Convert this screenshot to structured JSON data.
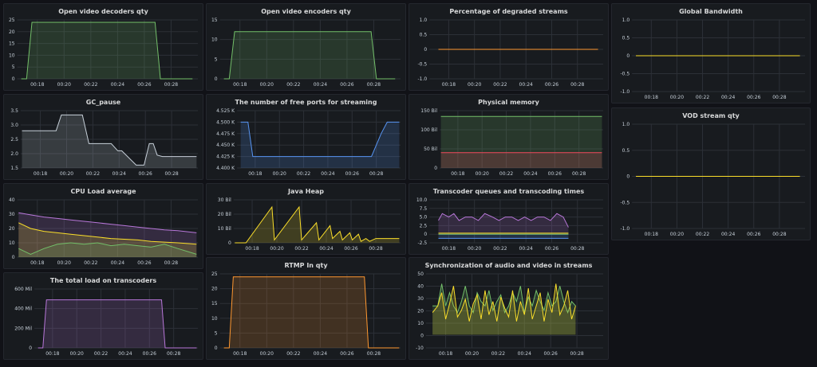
{
  "colors": {
    "green": "#73bf69",
    "yellow": "#fade2a",
    "orange": "#ff9830",
    "blue": "#5794f2",
    "purple": "#b877d9",
    "red": "#f2495c",
    "grid": "#2c3037",
    "tick": "#c7d0d9"
  },
  "panels": [
    {
      "id": "video-decoders",
      "title": "Open video decoders qty",
      "chart_data": {
        "type": "area",
        "x_ticks": [
          "00:18",
          "00:20",
          "00:22",
          "00:24",
          "00:26",
          "00:28"
        ],
        "y_ticks": [
          "0",
          "5",
          "10",
          "15",
          "20",
          "25"
        ],
        "ylim": [
          0,
          25
        ],
        "x": [
          16.8,
          17.2,
          17.6,
          26.8,
          27.2,
          29.6
        ],
        "series": [
          {
            "color": "green",
            "values": [
              0,
              0,
              24,
              24,
              0,
              0
            ]
          }
        ]
      }
    },
    {
      "id": "video-encoders",
      "title": "Open video encoders qty",
      "chart_data": {
        "type": "area",
        "x_ticks": [
          "00:18",
          "00:20",
          "00:22",
          "00:24",
          "00:26",
          "00:28"
        ],
        "y_ticks": [
          "0",
          "5",
          "10",
          "15"
        ],
        "ylim": [
          0,
          15
        ],
        "x": [
          16.8,
          17.2,
          17.6,
          27.8,
          28.2,
          29.6
        ],
        "series": [
          {
            "color": "green",
            "values": [
              0,
              0,
              12,
              12,
              0,
              0
            ]
          }
        ]
      }
    },
    {
      "id": "degraded-streams",
      "title": "Percentage of degraded streams",
      "chart_data": {
        "type": "line",
        "x_ticks": [
          "00:18",
          "00:20",
          "00:22",
          "00:24",
          "00:26",
          "00:28"
        ],
        "y_ticks": [
          "-1.0",
          "-0.5",
          "0",
          "0.5",
          "1.0"
        ],
        "ylim": [
          -1,
          1
        ],
        "x": [
          17.2,
          29.6
        ],
        "series": [
          {
            "color": "orange",
            "values": [
              0,
              0
            ]
          }
        ]
      }
    },
    {
      "id": "global-bandwidth",
      "title": "Global Bandwidth",
      "chart_data": {
        "type": "line",
        "x_ticks": [
          "00:18",
          "00:20",
          "00:22",
          "00:24",
          "00:26",
          "00:28"
        ],
        "y_ticks": [
          "-1.0",
          "-0.5",
          "0",
          "0.5",
          "1.0"
        ],
        "ylim": [
          -1,
          1
        ],
        "x": [
          16.8,
          29.6
        ],
        "series": [
          {
            "color": "yellow",
            "values": [
              0,
              0
            ]
          }
        ]
      }
    },
    {
      "id": "gc-pause",
      "title": "GC_pause",
      "chart_data": {
        "type": "area",
        "x_ticks": [
          "00:18",
          "00:20",
          "00:22",
          "00:24",
          "00:26",
          "00:28"
        ],
        "y_ticks": [
          "1.5",
          "2.0",
          "2.5",
          "3.0",
          "3.5"
        ],
        "ylim": [
          1.5,
          3.5
        ],
        "x": [
          16.6,
          19.2,
          19.6,
          21.2,
          21.7,
          23.4,
          23.9,
          24.2,
          25.3,
          25.9,
          26.3,
          26.6,
          26.9,
          27.3,
          28.0,
          29.9
        ],
        "series": [
          {
            "color": "tick",
            "values": [
              2.8,
              2.8,
              3.35,
              3.35,
              2.35,
              2.35,
              2.1,
              2.1,
              1.6,
              1.6,
              2.35,
              2.35,
              1.95,
              1.9,
              1.9,
              1.9
            ]
          }
        ]
      }
    },
    {
      "id": "free-ports",
      "title": "The number of free ports for streaming",
      "chart_data": {
        "type": "area",
        "x_ticks": [
          "00:18",
          "00:20",
          "00:22",
          "00:24",
          "00:26",
          "00:28"
        ],
        "y_ticks": [
          "4.400 K",
          "4.425 K",
          "4.450 K",
          "4.475 K",
          "4.500 K",
          "4.525 K"
        ],
        "ylim": [
          4400,
          4525
        ],
        "x": [
          16.8,
          17.4,
          17.8,
          27.6,
          28.4,
          28.9,
          29.9
        ],
        "series": [
          {
            "color": "blue",
            "values": [
              4500,
              4500,
              4425,
              4425,
              4475,
              4500,
              4500
            ]
          }
        ]
      }
    },
    {
      "id": "physical-memory",
      "title": "Physical memory",
      "chart_data": {
        "type": "area",
        "x_ticks": [
          "00:18",
          "00:20",
          "00:22",
          "00:24",
          "00:26",
          "00:28"
        ],
        "y_ticks": [
          "0",
          "50 Bil",
          "100 Bil",
          "150 Bil"
        ],
        "ylim": [
          0,
          150
        ],
        "x": [
          16.6,
          29.9
        ],
        "series": [
          {
            "color": "green",
            "values": [
              135,
              135
            ]
          },
          {
            "color": "red",
            "values": [
              40,
              40
            ]
          }
        ]
      }
    },
    {
      "id": "vod-stream",
      "title": "VOD stream qty",
      "chart_data": {
        "type": "line",
        "x_ticks": [
          "00:18",
          "00:20",
          "00:22",
          "00:24",
          "00:26",
          "00:28"
        ],
        "y_ticks": [
          "-1.0",
          "-0.5",
          "0",
          "0.5",
          "1.0"
        ],
        "ylim": [
          -1,
          1
        ],
        "x": [
          16.8,
          29.6
        ],
        "series": [
          {
            "color": "yellow",
            "values": [
              0,
              0
            ]
          }
        ]
      }
    },
    {
      "id": "cpu-load",
      "title": "CPU Load average",
      "chart_data": {
        "type": "area",
        "x_ticks": [
          "00:18",
          "00:20",
          "00:22",
          "00:24",
          "00:26",
          "00:28"
        ],
        "y_ticks": [
          "0",
          "10",
          "20",
          "30",
          "40"
        ],
        "ylim": [
          0,
          40
        ],
        "x": [
          16.6,
          17.5,
          18.5,
          19.5,
          20.5,
          21.5,
          22.5,
          23.5,
          24.5,
          25.5,
          26.5,
          27.5,
          28.5,
          29.9
        ],
        "series": [
          {
            "color": "purple",
            "values": [
              31,
              29.5,
              28,
              27,
              26,
              25,
              24,
              23,
              22,
              21,
              20,
              19,
              18.5,
              17
            ]
          },
          {
            "color": "yellow",
            "values": [
              24,
              20,
              18,
              17,
              16,
              15,
              14,
              13,
              12.5,
              12,
              11,
              10.5,
              10,
              9
            ]
          },
          {
            "color": "green",
            "values": [
              6,
              2,
              6,
              9,
              10,
              9,
              10,
              8,
              9,
              8,
              7,
              9,
              6,
              2
            ]
          }
        ]
      }
    },
    {
      "id": "java-heap",
      "title": "Java Heap",
      "chart_data": {
        "type": "area",
        "x_ticks": [
          "00:18",
          "00:20",
          "00:22",
          "00:24",
          "00:26",
          "00:28"
        ],
        "y_ticks": [
          "0",
          "10 Bil",
          "20 Bil",
          "30 Bil"
        ],
        "ylim": [
          0,
          30
        ],
        "x": [
          16.6,
          17.5,
          19.6,
          19.8,
          21.8,
          22.0,
          23.2,
          23.4,
          24.3,
          24.5,
          25.1,
          25.3,
          25.9,
          26.1,
          26.6,
          26.8,
          27.2,
          27.5,
          28.0,
          29.9
        ],
        "series": [
          {
            "color": "yellow",
            "values": [
              0,
              0,
              25,
              2,
              25,
              2,
              14,
              2,
              12,
              3,
              8,
              2,
              7,
              2,
              6,
              1,
              3,
              1,
              3,
              3
            ]
          }
        ]
      }
    },
    {
      "id": "transcoder-queues",
      "title": "Transcoder queues and transcoding times",
      "chart_data": {
        "type": "area",
        "x_ticks": [
          "00:18",
          "00:20",
          "00:22",
          "00:24",
          "00:26",
          "00:28"
        ],
        "y_ticks": [
          "-2.5",
          "0",
          "2.5",
          "5.0",
          "7.5",
          "10.0"
        ],
        "ylim": [
          -2.5,
          10
        ],
        "x": [
          17.2,
          17.5,
          18.0,
          18.4,
          18.8,
          19.3,
          19.8,
          20.3,
          20.8,
          21.4,
          21.9,
          22.4,
          22.9,
          23.4,
          23.9,
          24.4,
          24.9,
          25.4,
          25.9,
          26.4,
          26.9,
          27.3
        ],
        "series": [
          {
            "color": "purple",
            "values": [
              4,
              6,
              5,
              6,
              4,
              5,
              5,
              4,
              6,
              5,
              4,
              5,
              5,
              4,
              5,
              4,
              5,
              5,
              4,
              6,
              5,
              2
            ]
          },
          {
            "color": "yellow",
            "values": [
              0.3,
              0.3,
              0.3,
              0.3,
              0.3,
              0.3,
              0.3,
              0.3,
              0.3,
              0.3,
              0.3,
              0.3,
              0.3,
              0.3,
              0.3,
              0.3,
              0.3,
              0.3,
              0.3,
              0.3,
              0.3,
              0.3
            ]
          },
          {
            "color": "green",
            "values": [
              0,
              0,
              0,
              0,
              0,
              0,
              0,
              0,
              0,
              0,
              0,
              0,
              0,
              0,
              0,
              0,
              0,
              0,
              0,
              0,
              0,
              0
            ]
          },
          {
            "color": "blue",
            "values": [
              -1.2,
              -1.2,
              -1.2,
              -1.2,
              -1.2,
              -1.2,
              -1.2,
              -1.2,
              -1.2,
              -1.2,
              -1.2,
              -1.2,
              -1.2,
              -1.2,
              -1.2,
              -1.2,
              -1.2,
              -1.2,
              -1.2,
              -1.2,
              -1.2,
              -1.2
            ]
          }
        ]
      }
    },
    {
      "id": "total-load-transcoders",
      "title": "The total load on transcoders",
      "chart_data": {
        "type": "area",
        "x_ticks": [
          "00:18",
          "00:20",
          "00:22",
          "00:24",
          "00:26",
          "00:28"
        ],
        "y_ticks": [
          "0",
          "200 Mil",
          "400 Mil",
          "600 Mil"
        ],
        "ylim": [
          0,
          650
        ],
        "x": [
          16.8,
          17.2,
          17.5,
          27.0,
          27.3,
          29.9
        ],
        "series": [
          {
            "color": "purple",
            "values": [
              0,
              0,
              530,
              530,
              0,
              0
            ]
          }
        ]
      }
    },
    {
      "id": "rtmp-in",
      "title": "RTMP In qty",
      "chart_data": {
        "type": "area",
        "x_ticks": [
          "00:18",
          "00:20",
          "00:22",
          "00:24",
          "00:26",
          "00:28"
        ],
        "y_ticks": [
          "0",
          "5",
          "10",
          "15",
          "20",
          "25"
        ],
        "ylim": [
          0,
          25
        ],
        "x": [
          16.8,
          17.2,
          17.5,
          27.3,
          27.6,
          29.9
        ],
        "series": [
          {
            "color": "orange",
            "values": [
              0,
              0,
              24,
              24,
              0,
              0
            ]
          }
        ]
      }
    },
    {
      "id": "av-sync",
      "title": "Synchronization of audio and video in streams",
      "chart_data": {
        "type": "area",
        "x_ticks": [
          "00:18",
          "00:20",
          "00:22",
          "00:24",
          "00:26",
          "00:28"
        ],
        "y_ticks": [
          "-10",
          "0",
          "10",
          "20",
          "30",
          "40",
          "50"
        ],
        "ylim": [
          -12,
          55
        ],
        "x": [
          17.0,
          17.4,
          17.7,
          18.0,
          18.3,
          18.6,
          18.9,
          19.2,
          19.5,
          19.8,
          20.1,
          20.4,
          20.7,
          21.0,
          21.3,
          21.6,
          21.9,
          22.2,
          22.5,
          22.8,
          23.1,
          23.4,
          23.7,
          24.0,
          24.3,
          24.6,
          24.9,
          25.2,
          25.5,
          25.8,
          26.1,
          26.4,
          26.7,
          27.0,
          27.3,
          27.6,
          27.9
        ],
        "series": [
          {
            "color": "green",
            "values": [
              26,
              26,
              46,
              26,
              38,
              26,
              20,
              30,
              44,
              26,
              20,
              38,
              30,
              26,
              40,
              22,
              30,
              36,
              20,
              26,
              38,
              30,
              44,
              20,
              34,
              26,
              40,
              30,
              22,
              38,
              26,
              30,
              44,
              30,
              20,
              30,
              26
            ]
          },
          {
            "color": "yellow",
            "values": [
              20,
              26,
              38,
              14,
              28,
              44,
              16,
              22,
              32,
              12,
              28,
              36,
              14,
              40,
              18,
              30,
              12,
              34,
              24,
              16,
              40,
              12,
              30,
              18,
              42,
              14,
              26,
              38,
              12,
              32,
              20,
              46,
              18,
              26,
              40,
              14,
              26
            ]
          }
        ]
      }
    }
  ]
}
